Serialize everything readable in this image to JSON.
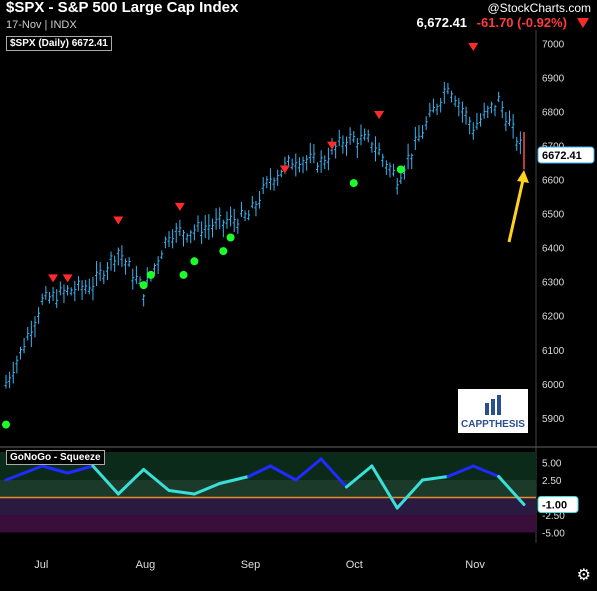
{
  "header": {
    "title": "$SPX - S&P 500 Large Cap Index",
    "subtitle": "17-Nov | INDX",
    "brand": "@StockCharts.com",
    "price": "6,672.41",
    "change": "-61.70 (-0.92%)"
  },
  "legend_label": "$SPX (Daily) 6672.41",
  "indicator_label": "GoNoGo - Squeeze",
  "logo_text": "CAPPTHESIS",
  "colors": {
    "price_bars": "#3ab4f2",
    "indicator_high": "#1f2bff",
    "indicator_low": "#38e0d8",
    "buy_dot": "#1cff2a",
    "sell_marker": "#ff2b2b",
    "annotation_arrow": "#ffd21f"
  },
  "chart_data": [
    {
      "type": "line",
      "title": "$SPX (Daily) 6672.41",
      "x": [
        "Jun-27",
        "Jul-01",
        "Jul-07",
        "Jul-14",
        "Jul-21",
        "Jul-28",
        "Aug-04",
        "Aug-11",
        "Aug-18",
        "Aug-25",
        "Sep-02",
        "Sep-08",
        "Sep-15",
        "Sep-22",
        "Sep-29",
        "Oct-06",
        "Oct-13",
        "Oct-20",
        "Oct-27",
        "Nov-03",
        "Nov-10",
        "Nov-17"
      ],
      "values": [
        6000,
        6090,
        6240,
        6270,
        6290,
        6390,
        6270,
        6440,
        6450,
        6470,
        6490,
        6600,
        6660,
        6650,
        6720,
        6710,
        6600,
        6740,
        6880,
        6750,
        6830,
        6672.41
      ],
      "ylim": [
        5820,
        7040
      ],
      "y_ticks": [
        5900,
        6000,
        6100,
        6200,
        6300,
        6400,
        6500,
        6600,
        6700,
        6800,
        6900,
        7000
      ],
      "last_label": "6672.41",
      "buy_signals": [
        {
          "x": "Jun-27",
          "y": 5880
        },
        {
          "x": "Aug-04",
          "y": 6290
        },
        {
          "x": "Aug-06",
          "y": 6320
        },
        {
          "x": "Aug-15",
          "y": 6320
        },
        {
          "x": "Aug-18",
          "y": 6360
        },
        {
          "x": "Aug-26",
          "y": 6390
        },
        {
          "x": "Aug-28",
          "y": 6430
        },
        {
          "x": "Oct-01",
          "y": 6590
        },
        {
          "x": "Oct-14",
          "y": 6630
        }
      ],
      "sell_signals": [
        {
          "x": "Jul-10",
          "y": 6310
        },
        {
          "x": "Jul-14",
          "y": 6310
        },
        {
          "x": "Jul-28",
          "y": 6480
        },
        {
          "x": "Aug-14",
          "y": 6520
        },
        {
          "x": "Sep-12",
          "y": 6630
        },
        {
          "x": "Sep-25",
          "y": 6700
        },
        {
          "x": "Oct-08",
          "y": 6790
        },
        {
          "x": "Nov-03",
          "y": 6990
        }
      ]
    },
    {
      "type": "line",
      "title": "GoNoGo - Squeeze",
      "x": [
        "Jun-27",
        "Jul-07",
        "Jul-14",
        "Jul-21",
        "Jul-28",
        "Aug-04",
        "Aug-11",
        "Aug-18",
        "Aug-25",
        "Sep-02",
        "Sep-08",
        "Sep-15",
        "Sep-22",
        "Sep-29",
        "Oct-06",
        "Oct-13",
        "Oct-20",
        "Oct-27",
        "Nov-03",
        "Nov-10",
        "Nov-17"
      ],
      "values": [
        2.5,
        4.5,
        3.5,
        4.5,
        0.5,
        4.0,
        1.0,
        0.5,
        2.0,
        3.0,
        4.5,
        2.5,
        5.5,
        1.5,
        4.5,
        -1.5,
        2.5,
        3.0,
        4.5,
        3.0,
        -1.0
      ],
      "ylim": [
        -6.5,
        6.5
      ],
      "y_ticks": [
        5.0,
        2.5,
        -2.5,
        -5.0
      ],
      "last_label": "-1.00"
    }
  ],
  "x_axis_months": [
    "Jul",
    "Aug",
    "Sep",
    "Oct",
    "Nov"
  ]
}
